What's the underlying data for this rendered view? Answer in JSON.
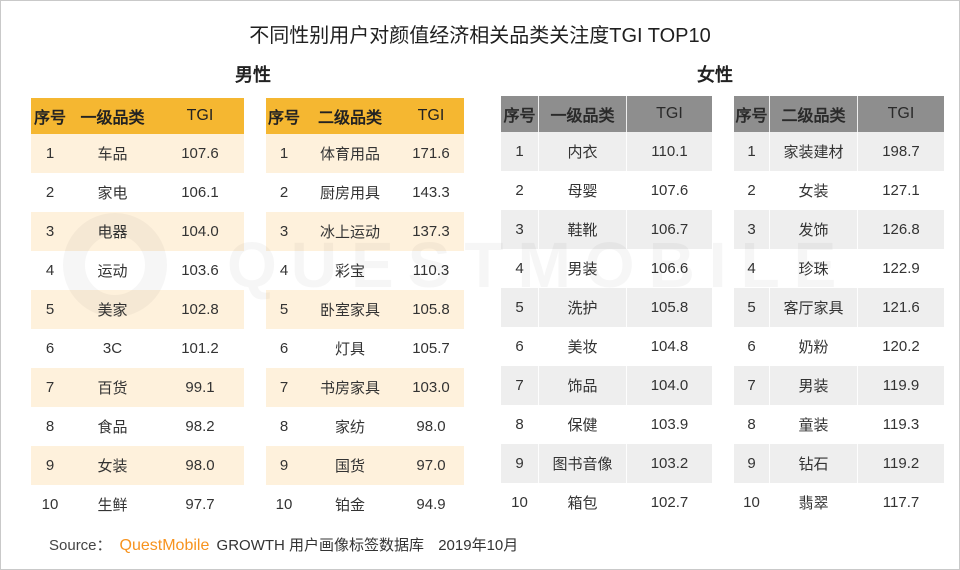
{
  "title": "不同性别用户对颜值经济相关品类关注度TGI TOP10",
  "watermark": "QUESTMOBILE",
  "section_labels": {
    "male": "男性",
    "female": "女性"
  },
  "colors": {
    "male_header": "#F5B731",
    "male_row": "#FEF1DC",
    "female_header": "#8E8E8E",
    "female_row": "#EEEEEE",
    "brand": "#F7931E"
  },
  "chart_data": [
    {
      "type": "table",
      "columns": [
        "序号",
        "一级品类",
        "TGI"
      ],
      "rows": [
        [
          "1",
          "车品",
          "107.6"
        ],
        [
          "2",
          "家电",
          "106.1"
        ],
        [
          "3",
          "电器",
          "104.0"
        ],
        [
          "4",
          "运动",
          "103.6"
        ],
        [
          "5",
          "美家",
          "102.8"
        ],
        [
          "6",
          "3C",
          "101.2"
        ],
        [
          "7",
          "百货",
          "99.1"
        ],
        [
          "8",
          "食品",
          "98.2"
        ],
        [
          "9",
          "女装",
          "98.0"
        ],
        [
          "10",
          "生鲜",
          "97.7"
        ]
      ]
    },
    {
      "type": "table",
      "columns": [
        "序号",
        "二级品类",
        "TGI"
      ],
      "rows": [
        [
          "1",
          "体育用品",
          "171.6"
        ],
        [
          "2",
          "厨房用具",
          "143.3"
        ],
        [
          "3",
          "冰上运动",
          "137.3"
        ],
        [
          "4",
          "彩宝",
          "110.3"
        ],
        [
          "5",
          "卧室家具",
          "105.8"
        ],
        [
          "6",
          "灯具",
          "105.7"
        ],
        [
          "7",
          "书房家具",
          "103.0"
        ],
        [
          "8",
          "家纺",
          "98.0"
        ],
        [
          "9",
          "国货",
          "97.0"
        ],
        [
          "10",
          "铂金",
          "94.9"
        ]
      ]
    },
    {
      "type": "table",
      "columns": [
        "序号",
        "一级品类",
        "TGI"
      ],
      "rows": [
        [
          "1",
          "内衣",
          "110.1"
        ],
        [
          "2",
          "母婴",
          "107.6"
        ],
        [
          "3",
          "鞋靴",
          "106.7"
        ],
        [
          "4",
          "男装",
          "106.6"
        ],
        [
          "5",
          "洗护",
          "105.8"
        ],
        [
          "6",
          "美妆",
          "104.8"
        ],
        [
          "7",
          "饰品",
          "104.0"
        ],
        [
          "8",
          "保健",
          "103.9"
        ],
        [
          "9",
          "图书音像",
          "103.2"
        ],
        [
          "10",
          "箱包",
          "102.7"
        ]
      ]
    },
    {
      "type": "table",
      "columns": [
        "序号",
        "二级品类",
        "TGI"
      ],
      "rows": [
        [
          "1",
          "家装建材",
          "198.7"
        ],
        [
          "2",
          "女装",
          "127.1"
        ],
        [
          "3",
          "发饰",
          "126.8"
        ],
        [
          "4",
          "珍珠",
          "122.9"
        ],
        [
          "5",
          "客厅家具",
          "121.6"
        ],
        [
          "6",
          "奶粉",
          "120.2"
        ],
        [
          "7",
          "男装",
          "119.9"
        ],
        [
          "8",
          "童装",
          "119.3"
        ],
        [
          "9",
          "钻石",
          "119.2"
        ],
        [
          "10",
          "翡翠",
          "117.7"
        ]
      ]
    }
  ],
  "source": {
    "label": "Source：",
    "brand": "QuestMobile",
    "text": "GROWTH 用户画像标签数据库",
    "date": "2019年10月"
  }
}
